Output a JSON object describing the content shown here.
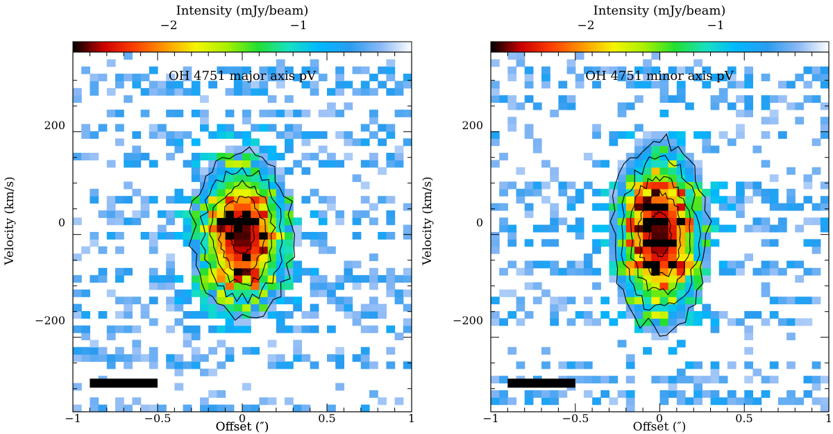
{
  "chart_data": [
    {
      "type": "heatmap",
      "title": "OH 4751 major axis pV",
      "xlabel": "Offset (″)",
      "ylabel": "Velocity (km/s)",
      "xlim": [
        -1,
        1
      ],
      "ylim": [
        -345,
        355
      ],
      "x_ticks": [
        -1,
        -0.5,
        0,
        0.5,
        1
      ],
      "x_tick_labels": [
        "−1",
        "−0.5",
        "0",
        "0.5",
        "1"
      ],
      "y_ticks": [
        -200,
        0,
        200
      ],
      "y_tick_labels": [
        "−200",
        "0",
        "200"
      ],
      "colorbar": {
        "title": "Intensity (mJy/beam)",
        "tick_labels": [
          "−2",
          "−1"
        ],
        "ticks": [
          -2,
          -1
        ],
        "range": [
          -2.7,
          -0.35
        ],
        "colormap": [
          "#000000",
          "#cc0000",
          "#ff4000",
          "#ff9a00",
          "#f5f500",
          "#a8f000",
          "#22e030",
          "#18e0c0",
          "#00b8ff",
          "#2a9cf0",
          "#8ab8f5",
          "#ffffff"
        ]
      },
      "source": {
        "x": 0.0,
        "v": 0,
        "peak": -2.65,
        "sigma_x": 0.18,
        "sigma_v": 95
      },
      "contour_levels": 5,
      "beam_bar": {
        "x": [
          -0.9,
          -0.5
        ],
        "v": -290
      }
    },
    {
      "type": "heatmap",
      "title": "OH 4751 minor axis pV",
      "xlabel": "Offset (″)",
      "ylabel": "Velocity (km/s)",
      "xlim": [
        -1,
        1
      ],
      "ylim": [
        -345,
        355
      ],
      "x_ticks": [
        -1,
        -0.5,
        0,
        0.5,
        1
      ],
      "x_tick_labels": [
        "−1",
        "−0.5",
        "0",
        "0.5",
        "1"
      ],
      "y_ticks": [
        -200,
        0,
        200
      ],
      "y_tick_labels": [
        "−200",
        "0",
        "200"
      ],
      "colorbar": {
        "title": "Intensity (mJy/beam)",
        "tick_labels": [
          "−2",
          "−1"
        ],
        "ticks": [
          -2,
          -1
        ],
        "range": [
          -2.7,
          -0.35
        ],
        "colormap": [
          "#000000",
          "#cc0000",
          "#ff4000",
          "#ff9a00",
          "#f5f500",
          "#a8f000",
          "#22e030",
          "#18e0c0",
          "#00b8ff",
          "#2a9cf0",
          "#8ab8f5",
          "#ffffff"
        ]
      },
      "source": {
        "x": 0.0,
        "v": 0,
        "peak": -2.65,
        "sigma_x": 0.17,
        "sigma_v": 110
      },
      "contour_levels": 5,
      "beam_bar": {
        "x": [
          -0.9,
          -0.5
        ],
        "v": -290
      }
    }
  ]
}
